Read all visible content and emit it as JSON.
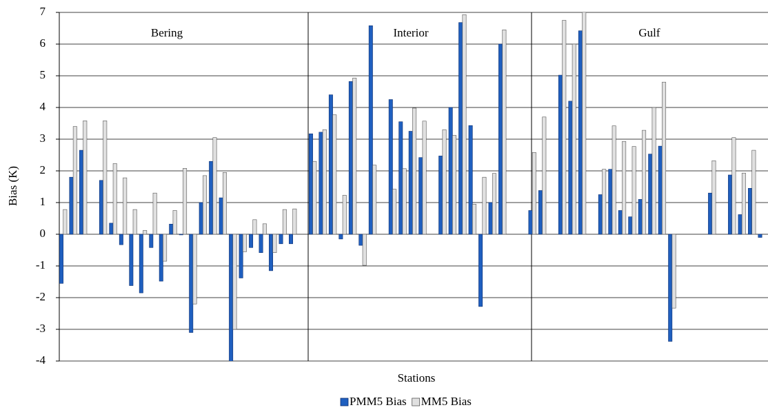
{
  "chart_data": {
    "type": "bar",
    "y_label": "Bias (K)",
    "x_label": "Stations",
    "annotations": [
      "Bering",
      "Interior",
      "Gulf"
    ],
    "categories": [
      null,
      null,
      null,
      null,
      null,
      null,
      null,
      null,
      null,
      null,
      null,
      null,
      null,
      null,
      null,
      null,
      null,
      null,
      null,
      null,
      null,
      null,
      null,
      null,
      null,
      null,
      null,
      null,
      null,
      null,
      null,
      null,
      null,
      null,
      null,
      null,
      null,
      null,
      null,
      null,
      null,
      null,
      null,
      null,
      null,
      null,
      null,
      null,
      null,
      null,
      null,
      null,
      null,
      null,
      null,
      null,
      null,
      null,
      null,
      null,
      null,
      null,
      null,
      null,
      null,
      null,
      null,
      null,
      null,
      null,
      null
    ],
    "series": [
      {
        "name": "PMM5 Bias",
        "color": "#1f5fbf",
        "values": [
          -1.55,
          1.8,
          2.65,
          null,
          1.7,
          0.35,
          -0.33,
          -1.62,
          -1.85,
          -0.42,
          -1.48,
          0.32,
          -0.02,
          -3.1,
          1.0,
          2.3,
          1.15,
          -4.05,
          -1.38,
          -0.42,
          -0.58,
          -1.15,
          -0.3,
          -0.3,
          null,
          3.17,
          3.22,
          4.4,
          -0.15,
          4.82,
          -0.35,
          6.58,
          null,
          4.25,
          3.55,
          3.25,
          2.42,
          null,
          2.47,
          4.0,
          6.68,
          3.43,
          -2.28,
          1.0,
          6.0,
          null,
          null,
          0.75,
          1.38,
          null,
          5.02,
          4.2,
          6.42,
          null,
          1.25,
          2.05,
          0.75,
          0.55,
          1.1,
          2.53,
          2.78,
          -3.38,
          null,
          null,
          null,
          1.3,
          null,
          1.87,
          0.62,
          1.45,
          -0.1
        ]
      },
      {
        "name": "MM5 Bias",
        "color": "#e0e0e0",
        "values": [
          0.78,
          3.4,
          3.58,
          null,
          3.58,
          2.23,
          1.78,
          0.78,
          0.12,
          1.3,
          -0.85,
          0.75,
          2.08,
          -2.2,
          1.85,
          3.05,
          1.95,
          -3.0,
          -0.55,
          0.46,
          0.33,
          -0.58,
          0.78,
          0.8,
          null,
          2.3,
          3.3,
          3.77,
          1.23,
          4.93,
          -0.98,
          2.18,
          null,
          1.42,
          2.07,
          3.98,
          3.57,
          null,
          3.3,
          3.12,
          6.93,
          0.95,
          1.8,
          1.92,
          6.45,
          null,
          null,
          2.58,
          3.7,
          null,
          6.75,
          6.0,
          7.2,
          null,
          2.05,
          3.42,
          2.93,
          2.77,
          3.28,
          4.0,
          4.8,
          -2.33,
          null,
          null,
          null,
          2.32,
          null,
          3.05,
          1.93,
          2.65,
          null
        ]
      }
    ],
    "ylim": [
      -4,
      7
    ],
    "yticks": [
      -4,
      -3,
      -2,
      -1,
      0,
      1,
      2,
      3,
      4,
      5,
      6,
      7
    ],
    "grid": true,
    "legend": "bottom"
  }
}
